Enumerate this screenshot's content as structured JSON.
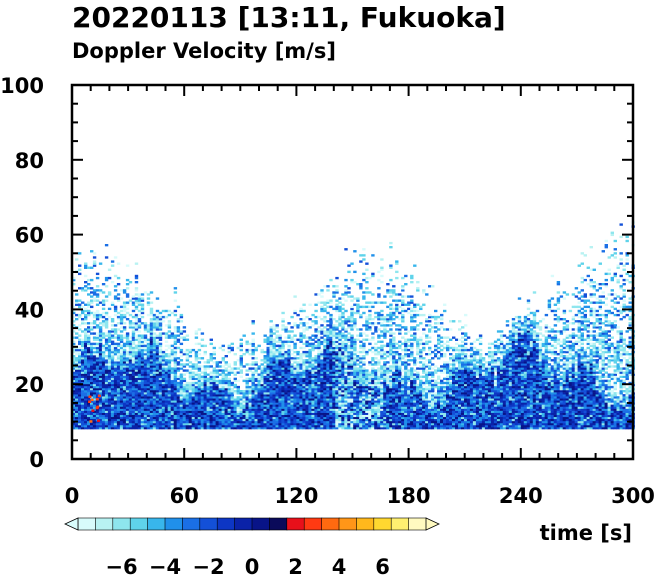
{
  "chart_data": {
    "type": "heatmap",
    "title": "20220113 [13:11, Fukuoka]",
    "subtitle": "Doppler Velocity [m/s]",
    "xlabel": "time [s]",
    "ylabel": "",
    "xlim": [
      0,
      300
    ],
    "ylim": [
      0,
      100
    ],
    "xticks": [
      0,
      60,
      120,
      180,
      240,
      300
    ],
    "yticks": [
      0,
      20,
      40,
      60,
      80,
      100
    ],
    "grid": false,
    "colorbar": {
      "orientation": "horizontal",
      "position": "bottom",
      "range": [
        -8,
        8
      ],
      "ticks": [
        -6,
        -4,
        -2,
        0,
        2,
        4,
        6
      ],
      "tick_labels": [
        "−6",
        "−4",
        "−2",
        "0",
        "2",
        "4",
        "6"
      ],
      "colors": [
        "#d8fbfb",
        "#b8f2f2",
        "#8ee6ee",
        "#5fd3ea",
        "#38b6ec",
        "#2090ea",
        "#1a6fe6",
        "#1350d8",
        "#0d36c4",
        "#0a22a8",
        "#081488",
        "#0a0a5a",
        "#e8101a",
        "#ff3a12",
        "#ff6a10",
        "#ff9618",
        "#ffb81c",
        "#ffd830",
        "#fff070",
        "#fffac0"
      ]
    },
    "data_summary": {
      "lowest_range_gate": 8,
      "dense_echo_top": 22,
      "sparse_echo_top": 50,
      "max_echo_height": 63,
      "dominant_velocity_range": [
        -6,
        -1
      ]
    }
  }
}
